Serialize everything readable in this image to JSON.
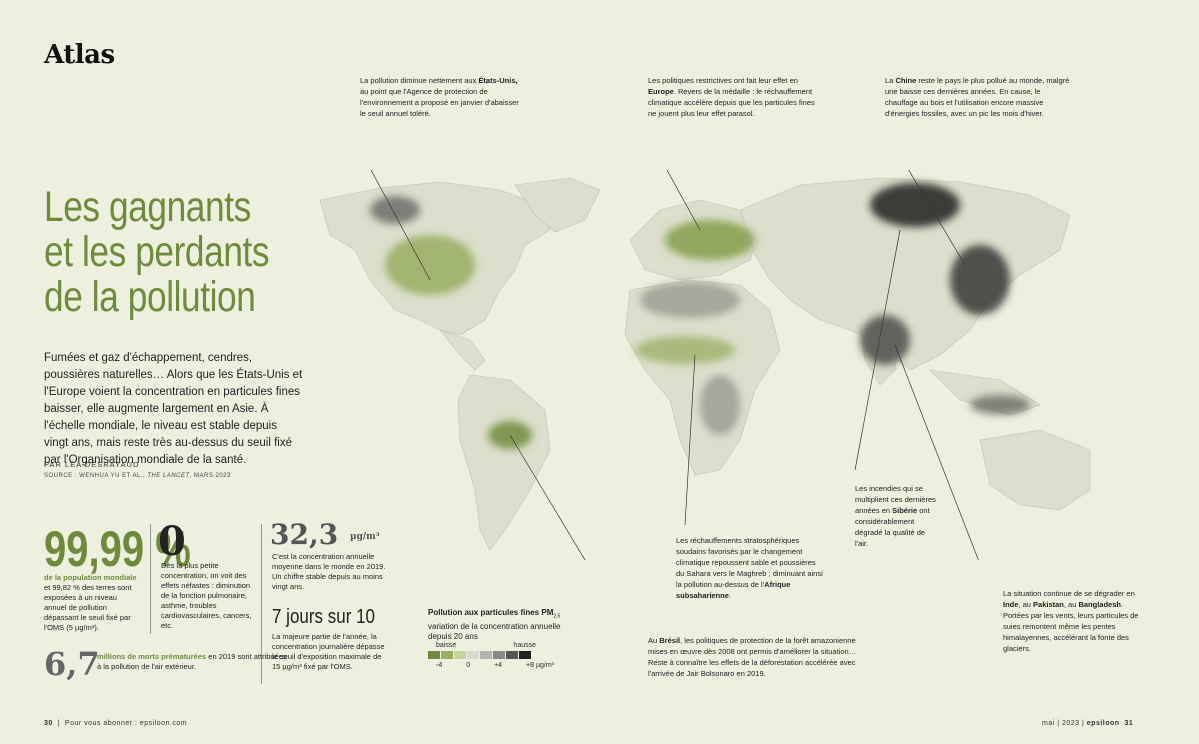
{
  "section_label": "Atlas",
  "headline": [
    "Les gagnants",
    "et les perdants",
    "de la pollution"
  ],
  "lede": "Fumées et gaz d'échappement, cendres, poussières naturelles… Alors que les États-Unis et l'Europe voient la concentration en particules fines baisser, elle augmente largement en Asie. À l'échelle mondiale, le niveau est stable depuis vingt ans, mais reste très au-dessus du seuil fixé par l'Organisation mondiale de la santé.",
  "byline": "PAR LÉA DESRAYAUD",
  "source": {
    "prefix": "SOURCE : WENHUA YU ET AL., ",
    "journal": "THE LANCET",
    "suffix": ", MARS 2023"
  },
  "stats": {
    "s1": {
      "value": "99,99 %",
      "bold": "de la population mondiale",
      "text": " et 99,82 % des terres sont exposées à un niveau annuel de pollution dépassant le seuil fixé par l'OMS (5 µg/m³)."
    },
    "s2": {
      "value": "0",
      "text": "Dès la plus petite concentration, on voit des effets néfastes : diminution de la fonction pulmonaire, asthme, troubles cardiovasculaires, cancers, etc."
    },
    "s3": {
      "value": "32,3",
      "unit": "µg/m³",
      "text": "C'est la concentration annuelle moyenne dans le monde en 2019. Un chiffre stable depuis au moins vingt ans."
    },
    "s4": {
      "value": "7 jours sur 10",
      "text": "La majeure partie de l'année, la concentration journalière dépasse le seuil d'exposition maximale de 15 µg/m³ fixé par l'OMS."
    },
    "s5": {
      "value": "6,7",
      "bold": "millions de morts prématurées",
      "text": " en 2019 sont attribuées à la pollution de l'air extérieur."
    }
  },
  "legend": {
    "title": "Pollution aux particules fines PM",
    "title_sub": "2,5",
    "subtitle": "variation de la concentration annuelle depuis 20 ans",
    "baisse": "baisse",
    "hausse": "hausse",
    "ticks": [
      "-4",
      "0",
      "+4",
      "+8 µg/m³"
    ],
    "colors": [
      "#6e8b3d",
      "#98ae63",
      "#c6d3a0",
      "#dadccd",
      "#b5b5ad",
      "#8a8a84",
      "#555551",
      "#222222"
    ]
  },
  "notes": {
    "usa": {
      "pre": "La pollution diminue nettement aux ",
      "bold": "États-Unis,",
      "post": " au point que l'Agence de protection de l'environnement a proposé en janvier d'abaisser le seuil annuel toléré."
    },
    "europe": {
      "pre": "Les politiques restrictives ont fait leur effet en ",
      "bold": "Europe",
      "post": ". Revers de la médaille : le réchauffement climatique accélère depuis que les particules fines ne jouent plus leur effet parasol."
    },
    "china": {
      "pre": "La ",
      "bold": "Chine",
      "post": " reste le pays le plus pollué au monde, malgré une baisse ces dernières années. En cause, le chauffage au bois et l'utilisation encore massive d'énergies fossiles, avec un pic les mois d'hiver."
    },
    "siberia": {
      "pre": "Les incendies qui se multiplient ces dernières années en ",
      "bold": "Sibérie",
      "post": " ont considérablement dégradé la qualité de l'air."
    },
    "africa": {
      "pre": "Les réchauffements stratosphériques soudains favorisés par le changement climatique repoussent sable et poussières du Sahara vers le Maghreb ; diminuant ainsi la pollution au-dessus de l'",
      "bold": "Afrique subsaharienne",
      "post": "."
    },
    "brazil": {
      "pre": "Au ",
      "bold": "Brésil",
      "post": ", les politiques de protection de la forêt amazonienne mises en œuvre dès 2008 ont permis d'améliorer la situation… Reste à connaître les effets de la déforestation accélérée avec l'arrivée de Jair Bolsonaro en 2019."
    },
    "india": {
      "pre": "La situation continue de se dégrader en ",
      "bold1": "Inde",
      "mid1": ", au ",
      "bold2": "Pakistan",
      "mid2": ", au ",
      "bold3": "Bangladesh",
      "post": ". Portées par les vents, leurs particules de suies remontent même les pentes himalayennes, accélérant la fonte des glaciers."
    }
  },
  "footer": {
    "left_page": "30",
    "left_text": "Pour vous abonner : epsiloon.com",
    "right_text": "mai | 2023 |",
    "brand": "epsiloon",
    "right_page": "31"
  }
}
